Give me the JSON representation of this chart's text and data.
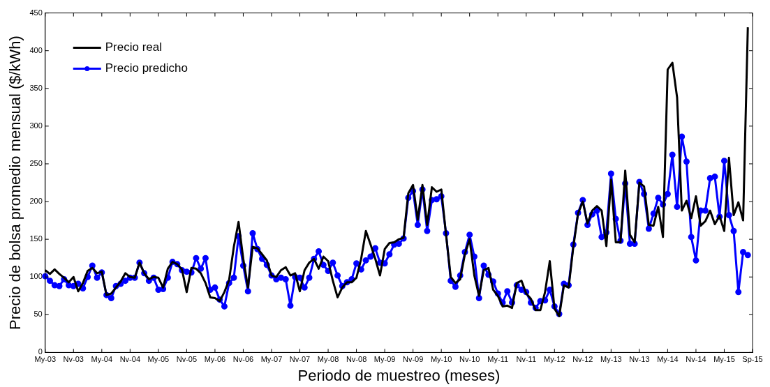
{
  "chart_data": {
    "type": "line",
    "xlabel": "Periodo de muestreo (meses)",
    "ylabel": "Precio de bolsa promedio mensual ($/kWh)",
    "categories": [
      "My-03",
      null,
      null,
      null,
      null,
      null,
      "Nv-03",
      null,
      null,
      null,
      null,
      null,
      "My-04",
      null,
      null,
      null,
      null,
      null,
      "Nv-04",
      null,
      null,
      null,
      null,
      null,
      "My-05",
      null,
      null,
      null,
      null,
      null,
      "Nv-05",
      null,
      null,
      null,
      null,
      null,
      "My-06",
      null,
      null,
      null,
      null,
      null,
      "Nv-06",
      null,
      null,
      null,
      null,
      null,
      "My-07",
      null,
      null,
      null,
      null,
      null,
      "Nv-07",
      null,
      null,
      null,
      null,
      null,
      "My-08",
      null,
      null,
      null,
      null,
      null,
      "Nv-08",
      null,
      null,
      null,
      null,
      null,
      "My-09",
      null,
      null,
      null,
      null,
      null,
      "Nv-09",
      null,
      null,
      null,
      null,
      null,
      "My-10",
      null,
      null,
      null,
      null,
      null,
      "Nv-10",
      null,
      null,
      null,
      null,
      null,
      "My-11",
      null,
      null,
      null,
      null,
      null,
      "Nv-11",
      null,
      null,
      null,
      null,
      null,
      "My-12",
      null,
      null,
      null,
      null,
      null,
      "Nv-12",
      null,
      null,
      null,
      null,
      null,
      "My-13",
      null,
      null,
      null,
      null,
      null,
      "Nv-13",
      null,
      null,
      null,
      null,
      null,
      "My-14",
      null,
      null,
      null,
      null,
      null,
      "Nv-14",
      null,
      null,
      null,
      null,
      null,
      "My-15",
      null,
      null,
      null,
      null,
      null,
      "Sp-15"
    ],
    "series": [
      {
        "name": "Precio real",
        "color": "#000000",
        "marker": "none",
        "values": [
          109,
          104,
          110,
          104,
          99,
          93,
          100,
          81,
          92,
          108,
          112,
          105,
          107,
          76,
          78,
          86,
          94,
          105,
          100,
          99,
          119,
          105,
          97,
          100,
          99,
          86,
          111,
          120,
          117,
          110,
          80,
          112,
          111,
          105,
          92,
          73,
          72,
          68,
          80,
          96,
          140,
          173,
          124,
          86,
          140,
          138,
          130,
          122,
          102,
          100,
          109,
          113,
          102,
          105,
          81,
          109,
          119,
          124,
          111,
          127,
          121,
          95,
          73,
          86,
          93,
          93,
          99,
          124,
          161,
          143,
          124,
          102,
          137,
          145,
          146,
          150,
          152,
          211,
          222,
          176,
          222,
          169,
          219,
          213,
          216,
          156,
          100,
          92,
          97,
          130,
          150,
          102,
          75,
          109,
          112,
          83,
          75,
          61,
          62,
          59,
          92,
          95,
          78,
          71,
          56,
          56,
          80,
          121,
          58,
          48,
          89,
          86,
          140,
          184,
          200,
          171,
          188,
          194,
          188,
          141,
          229,
          146,
          146,
          241,
          156,
          146,
          225,
          220,
          169,
          168,
          193,
          153,
          375,
          384,
          338,
          188,
          201,
          178,
          207,
          168,
          174,
          188,
          170,
          181,
          161,
          258,
          182,
          199,
          175,
          431,
          null
        ]
      },
      {
        "name": "Precio predicho",
        "color": "#0000ff",
        "marker": "circle",
        "values": [
          101,
          95,
          89,
          88,
          97,
          89,
          88,
          91,
          85,
          100,
          115,
          99,
          106,
          76,
          72,
          88,
          91,
          95,
          99,
          99,
          119,
          105,
          95,
          99,
          83,
          84,
          99,
          120,
          117,
          109,
          107,
          106,
          125,
          111,
          125,
          83,
          86,
          70,
          61,
          92,
          99,
          154,
          115,
          81,
          158,
          137,
          124,
          116,
          102,
          97,
          99,
          97,
          62,
          100,
          99,
          86,
          99,
          124,
          134,
          116,
          108,
          119,
          102,
          88,
          93,
          97,
          118,
          110,
          122,
          127,
          138,
          119,
          118,
          130,
          143,
          144,
          151,
          205,
          214,
          169,
          216,
          161,
          202,
          203,
          207,
          158,
          95,
          87,
          102,
          133,
          156,
          127,
          72,
          115,
          103,
          94,
          78,
          66,
          81,
          66,
          89,
          83,
          80,
          66,
          59,
          68,
          69,
          83,
          61,
          51,
          91,
          89,
          143,
          185,
          202,
          169,
          183,
          188,
          153,
          159,
          237,
          177,
          148,
          224,
          144,
          144,
          226,
          210,
          164,
          184,
          205,
          196,
          210,
          262,
          193,
          286,
          253,
          153,
          122,
          188,
          188,
          231,
          233,
          180,
          254,
          182,
          161,
          80,
          133,
          129,
          null
        ]
      }
    ],
    "ylim": [
      0,
      450
    ],
    "yticks": [
      0,
      50,
      100,
      150,
      200,
      250,
      300,
      350,
      400,
      450
    ],
    "legend": "top left",
    "line_style": "solid"
  }
}
